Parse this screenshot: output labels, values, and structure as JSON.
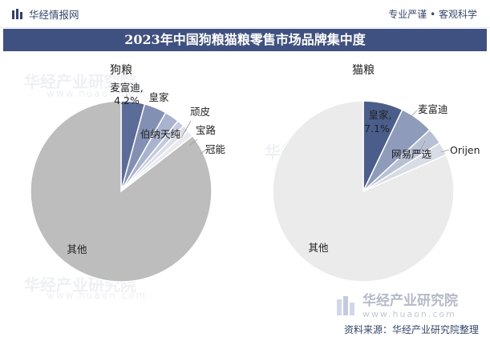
{
  "header": {
    "brand_name": "华经情报网",
    "tagline": "专业严谨 • 客观科学"
  },
  "title": "2023年中国狗粮猫粮零售市场品牌集中度",
  "footer": {
    "source": "资料来源：华经产业研究院整理"
  },
  "watermark": {
    "name": "华经产业研究院",
    "url": "www.huaon.com"
  },
  "chart_data": [
    {
      "type": "pie",
      "title": "狗粮",
      "slices": [
        {
          "label": "麦富迪",
          "value": 4.2,
          "value_label": "4.2%",
          "color": "#5a6c97"
        },
        {
          "label": "皇家",
          "value": 4.0,
          "color": "#8290b4"
        },
        {
          "label": "伯纳天纯",
          "value": 2.6,
          "color": "#a9b3cd"
        },
        {
          "label": "顽皮",
          "value": 1.3,
          "color": "#c5cbdc"
        },
        {
          "label": "宝路",
          "value": 1.2,
          "color": "#dcdfe8"
        },
        {
          "label": "冠能",
          "value": 1.2,
          "color": "#e9ebf0"
        },
        {
          "label": "其他",
          "value": 85.5,
          "color": "#bdbdbd"
        }
      ]
    },
    {
      "type": "pie",
      "title": "猫粮",
      "slices": [
        {
          "label": "皇家",
          "value": 7.1,
          "value_label": "7.1%",
          "color": "#4b5d8a"
        },
        {
          "label": "麦富迪",
          "value": 6.0,
          "color": "#8e9bbb"
        },
        {
          "label": "网易严选",
          "value": 2.9,
          "color": "#b8c0d4"
        },
        {
          "label": "Orijen",
          "value": 2.4,
          "color": "#d8dce6"
        },
        {
          "label": "其他",
          "value": 81.6,
          "color": "#ebebeb"
        }
      ]
    }
  ]
}
